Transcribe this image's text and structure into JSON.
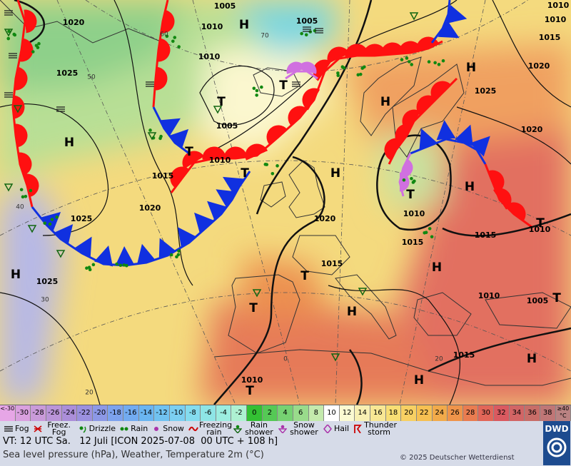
{
  "map": {
    "pressure_centers": [
      "H",
      "H",
      "H",
      "H",
      "H",
      "H",
      "H",
      "H",
      "H",
      "H",
      "H",
      "T",
      "T",
      "T",
      "T",
      "T",
      "T",
      "T",
      "T",
      "T",
      "T"
    ],
    "isobar_labels": [
      1005,
      1010,
      1005,
      1020,
      1010,
      1010,
      1015,
      1020,
      1025,
      1010,
      1025,
      1005,
      1010,
      1015,
      1020,
      1020,
      1025,
      1020,
      1010,
      1015,
      1015,
      1010,
      1015,
      1025,
      1010,
      1005,
      1015,
      1010
    ],
    "temperature_labels": [
      60,
      70,
      50,
      40,
      30,
      20,
      20,
      0
    ]
  },
  "legend": {
    "scale_values": [
      "<-30",
      -30,
      -28,
      -26,
      -24,
      -22,
      -20,
      -18,
      -16,
      -14,
      -12,
      -10,
      -8,
      -6,
      -4,
      -2,
      0,
      2,
      4,
      6,
      8,
      10,
      12,
      14,
      16,
      18,
      20,
      22,
      24,
      26,
      28,
      30,
      32,
      34,
      36,
      38,
      "≥40 °C"
    ],
    "scale_colors": [
      "#e6a6e6",
      "#d9a0df",
      "#c99ad9",
      "#ba94d8",
      "#ab8ed9",
      "#9b90df",
      "#8c98e6",
      "#7ca2ee",
      "#72abf0",
      "#6ab5f1",
      "#70c2f1",
      "#7bcff1",
      "#84dcef",
      "#8ee5e6",
      "#9cede0",
      "#aef1d2",
      "#33c033",
      "#55c955",
      "#76d272",
      "#99db8b",
      "#c4eaad",
      "#ffffff",
      "#fbfad2",
      "#f8f0b3",
      "#f8e794",
      "#f8de74",
      "#f7d063",
      "#f6c052",
      "#f1aa4a",
      "#ef944a",
      "#e97c50",
      "#e26658",
      "#da5a60",
      "#d26565",
      "#c86d68",
      "#bf7676",
      "#b98282"
    ],
    "symbols": [
      "Fog",
      "Freez. Fog",
      "Drizzle",
      "Rain",
      "Snow",
      "Freezing rain",
      "Rain shower",
      "Snow shower",
      "Hail",
      "Thunder storm"
    ]
  },
  "footer": {
    "valid_time": "VT: 12 UTC Sa.   12 Juli [ICON 2025-07-08  00 UTC + 108 h]",
    "description": "Sea level pressure (hPa), Weather, Temperature 2m (°C)",
    "copyright": "© 2025 Deutscher Wetterdienst",
    "logo": "DWD"
  }
}
